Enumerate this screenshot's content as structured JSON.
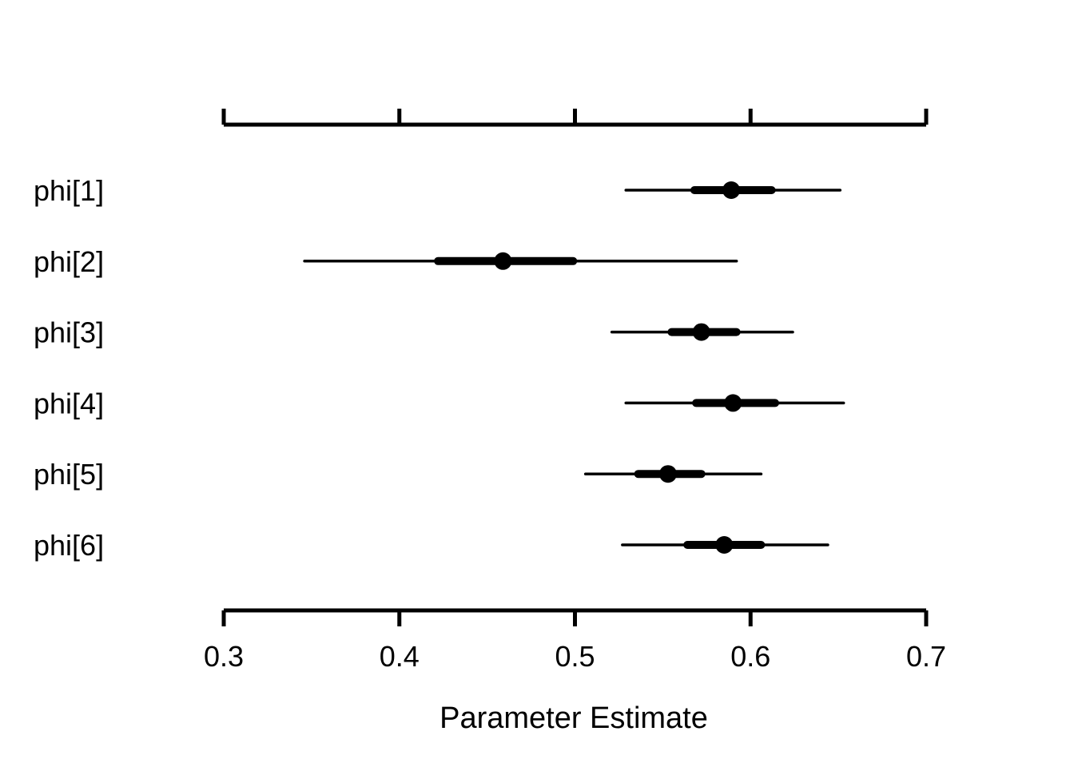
{
  "chart_data": {
    "type": "forest",
    "title": "",
    "xlabel": "Parameter Estimate",
    "ylabel": "",
    "xlim": [
      0.3,
      0.7
    ],
    "xticks": [
      0.3,
      0.4,
      0.5,
      0.6,
      0.7
    ],
    "xtick_labels": [
      "0.3",
      "0.4",
      "0.5",
      "0.6",
      "0.7"
    ],
    "top_axis_labels_shown": false,
    "grid": false,
    "color": "#000000",
    "parameters": [
      {
        "label": "phi[1]",
        "estimate": 0.589,
        "inner": [
          0.568,
          0.612
        ],
        "outer": [
          0.529,
          0.651
        ]
      },
      {
        "label": "phi[2]",
        "estimate": 0.459,
        "inner": [
          0.422,
          0.499
        ],
        "outer": [
          0.346,
          0.592
        ]
      },
      {
        "label": "phi[3]",
        "estimate": 0.572,
        "inner": [
          0.555,
          0.592
        ],
        "outer": [
          0.521,
          0.624
        ]
      },
      {
        "label": "phi[4]",
        "estimate": 0.59,
        "inner": [
          0.569,
          0.614
        ],
        "outer": [
          0.529,
          0.653
        ]
      },
      {
        "label": "phi[5]",
        "estimate": 0.553,
        "inner": [
          0.536,
          0.572
        ],
        "outer": [
          0.506,
          0.606
        ]
      },
      {
        "label": "phi[6]",
        "estimate": 0.585,
        "inner": [
          0.564,
          0.606
        ],
        "outer": [
          0.527,
          0.644
        ]
      }
    ]
  }
}
